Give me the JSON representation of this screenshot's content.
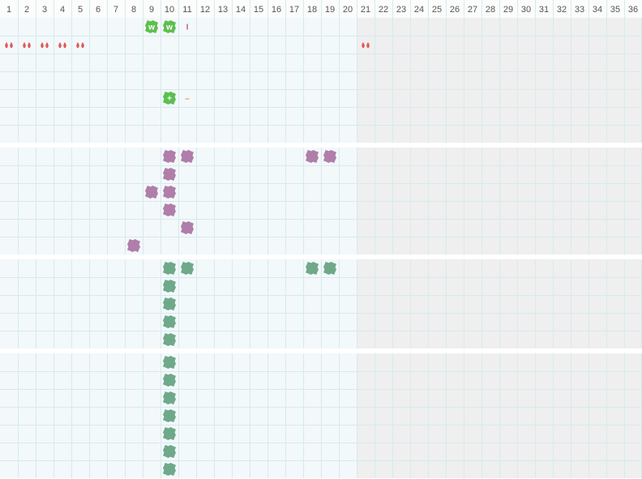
{
  "columns": [
    "1",
    "2",
    "3",
    "4",
    "5",
    "6",
    "7",
    "8",
    "9",
    "10",
    "11",
    "12",
    "13",
    "14",
    "15",
    "16",
    "17",
    "18",
    "19",
    "20",
    "21",
    "22",
    "23",
    "24",
    "25",
    "26",
    "27",
    "28",
    "29",
    "30",
    "31",
    "32",
    "33",
    "34",
    "35",
    "36"
  ],
  "sections": [
    {
      "icon": "drop",
      "color": "#e05a5a",
      "rows": [
        [
          {
            "col": 9,
            "label": "w",
            "fill": "#5cbf4e"
          },
          {
            "col": 10,
            "label": "w",
            "fill": "#5cbf4e"
          },
          {
            "col": 11,
            "label": "I",
            "color": "#c2607c"
          }
        ],
        [
          {
            "col": 1
          },
          {
            "col": 2
          },
          {
            "col": 3
          },
          {
            "col": 4
          },
          {
            "col": 5
          },
          {
            "col": 21
          }
        ],
        [],
        [],
        [
          {
            "col": 10,
            "label": "+",
            "fill": "#5cbf4e"
          },
          {
            "col": 11,
            "label": "–",
            "color": "#f08a3c"
          }
        ],
        [],
        []
      ]
    },
    {
      "icon": "blob",
      "color": "#b07eaa",
      "rows": [
        [
          {
            "col": 10
          },
          {
            "col": 11
          },
          {
            "col": 18
          },
          {
            "col": 19
          }
        ],
        [
          {
            "col": 10
          }
        ],
        [
          {
            "col": 9
          },
          {
            "col": 10
          }
        ],
        [
          {
            "col": 10
          }
        ],
        [
          {
            "col": 11
          }
        ],
        [
          {
            "col": 8
          }
        ]
      ]
    },
    {
      "icon": "blob",
      "color": "#6fa98a",
      "rows": [
        [
          {
            "col": 10
          },
          {
            "col": 11
          },
          {
            "col": 18
          },
          {
            "col": 19
          }
        ],
        [
          {
            "col": 10
          }
        ],
        [
          {
            "col": 10
          }
        ],
        [
          {
            "col": 10
          }
        ],
        [
          {
            "col": 10
          }
        ]
      ]
    },
    {
      "icon": "blob",
      "color": "#6fa98a",
      "rows": [
        [
          {
            "col": 10
          }
        ],
        [
          {
            "col": 10
          }
        ],
        [
          {
            "col": 10
          }
        ],
        [
          {
            "col": 10
          }
        ],
        [
          {
            "col": 10
          }
        ],
        [
          {
            "col": 10
          }
        ],
        [
          {
            "col": 10
          }
        ]
      ]
    }
  ]
}
